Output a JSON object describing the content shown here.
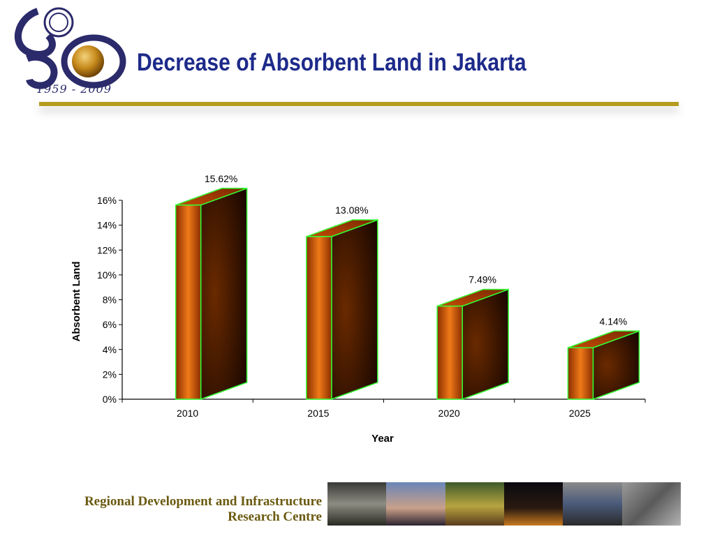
{
  "header": {
    "logo_years": "1959 - 2009",
    "title": "Decrease of Absorbent Land in Jakarta"
  },
  "footer": {
    "org_line1": "Regional Development and Infrastructure",
    "org_line2": "Research Centre"
  },
  "colors": {
    "title": "#1d2a8a",
    "accent_rule": "#b59b1e",
    "bar_front": "#e0610c",
    "bar_edge": "#33ff33"
  },
  "chart_data": {
    "type": "bar",
    "title": "",
    "xlabel": "Year",
    "ylabel": "Absorbent Land",
    "categories": [
      "2010",
      "2015",
      "2020",
      "2025"
    ],
    "values": [
      15.62,
      13.08,
      7.49,
      4.14
    ],
    "data_labels": [
      "15.62%",
      "13.08%",
      "7.49%",
      "4.14%"
    ],
    "ylim": [
      0,
      16
    ],
    "yticks": [
      "0%",
      "2%",
      "4%",
      "6%",
      "8%",
      "10%",
      "12%",
      "14%",
      "16%"
    ],
    "grid": false,
    "legend": "none",
    "style": "3d-box"
  }
}
